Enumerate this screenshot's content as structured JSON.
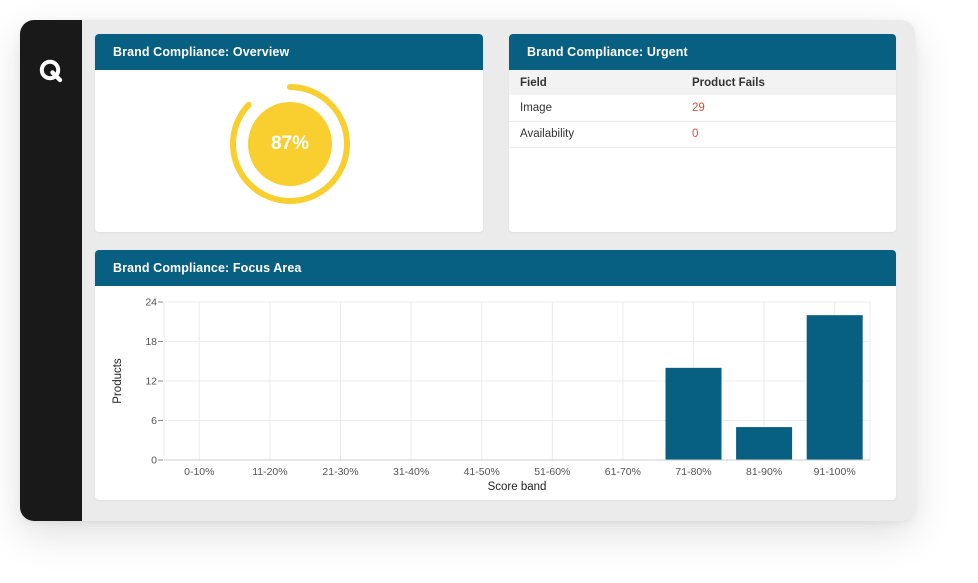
{
  "app": {
    "logo_icon": "q-logo-icon"
  },
  "overview": {
    "title": "Brand Compliance: Overview",
    "percent_label": "87%",
    "percent_value": 87,
    "ring_color": "#f9cf2f"
  },
  "urgent": {
    "title": "Brand Compliance: Urgent",
    "columns": [
      "Field",
      "Product Fails"
    ],
    "rows": [
      {
        "field": "Image",
        "fails": "29"
      },
      {
        "field": "Availability",
        "fails": "0"
      }
    ],
    "fail_color": "#e0483b"
  },
  "focus": {
    "title": "Brand Compliance: Focus Area"
  },
  "chart_data": {
    "type": "bar",
    "categories": [
      "0-10%",
      "11-20%",
      "21-30%",
      "31-40%",
      "41-50%",
      "51-60%",
      "61-70%",
      "71-80%",
      "81-90%",
      "91-100%"
    ],
    "values": [
      0,
      0,
      0,
      0,
      0,
      0,
      0,
      14,
      5,
      22
    ],
    "xlabel": "Score band",
    "ylabel": "Products",
    "ylim": [
      0,
      24
    ],
    "yticks": [
      0,
      6,
      12,
      18,
      24
    ],
    "bar_color": "#075f81",
    "grid": true
  }
}
